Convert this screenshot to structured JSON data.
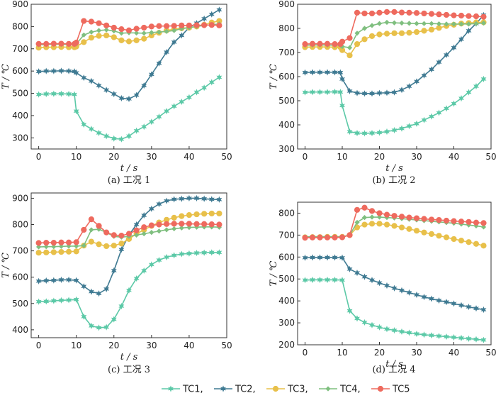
{
  "chart_data": [
    {
      "type": "line",
      "caption": "(a)  工况 1",
      "ylabel": "T / ℃",
      "xlabel": "t / s",
      "xlim": [
        -2,
        50
      ],
      "ylim": [
        250,
        900
      ],
      "xticks": [
        0,
        10,
        20,
        30,
        40,
        50
      ],
      "yticks": [
        300,
        400,
        500,
        600,
        700,
        800,
        900
      ],
      "x": [
        0,
        2,
        4,
        6,
        8,
        9.5,
        10,
        12,
        14,
        16,
        18,
        20,
        22,
        24,
        26,
        28,
        30,
        32,
        34,
        36,
        38,
        40,
        42,
        44,
        46,
        48
      ],
      "series": [
        {
          "name": "TC1",
          "values": [
            495,
            497,
            498,
            498,
            497,
            495,
            420,
            360,
            340,
            322,
            308,
            297,
            294,
            308,
            332,
            350,
            372,
            395,
            420,
            442,
            462,
            482,
            505,
            525,
            550,
            572
          ]
        },
        {
          "name": "TC2",
          "values": [
            598,
            600,
            600,
            601,
            600,
            598,
            592,
            570,
            555,
            535,
            515,
            497,
            478,
            475,
            492,
            535,
            585,
            635,
            685,
            730,
            760,
            795,
            815,
            835,
            855,
            875
          ]
        },
        {
          "name": "TC3",
          "values": [
            705,
            707,
            707,
            708,
            707,
            707,
            710,
            730,
            750,
            758,
            760,
            752,
            738,
            733,
            738,
            745,
            760,
            772,
            782,
            788,
            792,
            795,
            800,
            808,
            818,
            825
          ]
        },
        {
          "name": "TC4",
          "values": [
            718,
            719,
            720,
            720,
            719,
            720,
            722,
            762,
            775,
            782,
            785,
            780,
            770,
            772,
            771,
            770,
            773,
            775,
            778,
            782,
            790,
            795,
            800,
            805,
            808,
            812
          ]
        },
        {
          "name": "TC5",
          "values": [
            722,
            722,
            723,
            723,
            722,
            722,
            728,
            825,
            822,
            815,
            805,
            795,
            788,
            783,
            790,
            795,
            800,
            802,
            802,
            803,
            805,
            805,
            806,
            806,
            807,
            805
          ]
        }
      ]
    },
    {
      "type": "line",
      "caption": "(b)  工况 2",
      "ylabel": "T / ℃",
      "xlabel": "t / s",
      "xlim": [
        -2,
        50
      ],
      "ylim": [
        300,
        900
      ],
      "xticks": [
        0,
        10,
        20,
        30,
        40,
        50
      ],
      "yticks": [
        300,
        400,
        500,
        600,
        700,
        800,
        900
      ],
      "x": [
        0,
        2,
        4,
        6,
        8,
        9.5,
        10,
        12,
        14,
        16,
        18,
        20,
        22,
        24,
        26,
        28,
        30,
        32,
        34,
        36,
        38,
        40,
        42,
        44,
        46,
        48
      ],
      "series": [
        {
          "name": "TC1",
          "values": [
            535,
            536,
            536,
            536,
            537,
            536,
            480,
            372,
            366,
            365,
            366,
            368,
            372,
            378,
            385,
            395,
            405,
            420,
            435,
            450,
            468,
            488,
            510,
            535,
            560,
            590
          ]
        },
        {
          "name": "TC2",
          "values": [
            617,
            618,
            618,
            618,
            618,
            617,
            590,
            540,
            532,
            530,
            530,
            532,
            533,
            535,
            545,
            560,
            580,
            605,
            630,
            660,
            690,
            720,
            755,
            790,
            820,
            855
          ]
        },
        {
          "name": "TC3",
          "values": [
            722,
            723,
            723,
            723,
            722,
            722,
            710,
            688,
            735,
            755,
            768,
            775,
            778,
            780,
            780,
            782,
            785,
            790,
            795,
            802,
            810,
            815,
            820,
            822,
            825,
            825
          ]
        },
        {
          "name": "TC4",
          "values": [
            730,
            731,
            731,
            731,
            730,
            730,
            725,
            720,
            780,
            800,
            812,
            820,
            825,
            823,
            822,
            821,
            820,
            820,
            820,
            819,
            818,
            818,
            818,
            818,
            820,
            822
          ]
        },
        {
          "name": "TC5",
          "values": [
            735,
            736,
            736,
            736,
            735,
            735,
            745,
            760,
            865,
            862,
            862,
            865,
            868,
            868,
            866,
            865,
            864,
            862,
            860,
            858,
            856,
            854,
            853,
            851,
            850,
            848
          ]
        }
      ]
    },
    {
      "type": "line",
      "caption": "(c)  工况 3",
      "ylabel": "T / ℃",
      "xlabel": "t / s",
      "xlim": [
        -2,
        50
      ],
      "ylim": [
        370,
        920
      ],
      "xticks": [
        0,
        10,
        20,
        30,
        40,
        50
      ],
      "yticks": [
        400,
        500,
        600,
        700,
        800,
        900
      ],
      "x": [
        0,
        2,
        4,
        6,
        8,
        10,
        12,
        14,
        16,
        18,
        20,
        22,
        24,
        26,
        28,
        30,
        32,
        34,
        36,
        38,
        40,
        42,
        44,
        46,
        48
      ],
      "series": [
        {
          "name": "TC1",
          "values": [
            507,
            508,
            510,
            512,
            513,
            515,
            450,
            415,
            408,
            410,
            440,
            490,
            550,
            595,
            625,
            648,
            665,
            676,
            683,
            688,
            690,
            692,
            693,
            694,
            694
          ]
        },
        {
          "name": "TC2",
          "values": [
            585,
            587,
            588,
            590,
            590,
            588,
            565,
            545,
            538,
            555,
            625,
            705,
            760,
            800,
            835,
            860,
            878,
            890,
            896,
            898,
            900,
            900,
            898,
            896,
            895
          ]
        },
        {
          "name": "TC3",
          "values": [
            693,
            694,
            695,
            696,
            697,
            698,
            720,
            735,
            725,
            718,
            720,
            728,
            745,
            765,
            780,
            795,
            808,
            818,
            826,
            832,
            836,
            839,
            841,
            842,
            842
          ]
        },
        {
          "name": "TC4",
          "values": [
            715,
            716,
            716,
            717,
            718,
            718,
            720,
            780,
            782,
            770,
            755,
            752,
            755,
            760,
            765,
            770,
            775,
            780,
            784,
            787,
            789,
            790,
            791,
            791,
            790
          ]
        },
        {
          "name": "TC5",
          "values": [
            730,
            731,
            731,
            732,
            732,
            733,
            780,
            820,
            795,
            770,
            760,
            758,
            765,
            778,
            790,
            797,
            800,
            802,
            803,
            803,
            803,
            802,
            802,
            801,
            800
          ]
        }
      ]
    },
    {
      "type": "line",
      "caption": "(d)  工况 4",
      "ylabel": "T / ℃",
      "xlabel": "t / s",
      "xlim": [
        -2,
        50
      ],
      "ylim": [
        200,
        850
      ],
      "xticks": [
        0,
        10,
        20,
        30,
        40,
        50
      ],
      "yticks": [
        200,
        300,
        400,
        500,
        600,
        700,
        800
      ],
      "x": [
        0,
        2,
        4,
        6,
        8,
        10,
        12,
        14,
        16,
        18,
        20,
        22,
        24,
        26,
        28,
        30,
        32,
        34,
        36,
        38,
        40,
        42,
        44,
        46,
        48
      ],
      "series": [
        {
          "name": "TC1",
          "values": [
            495,
            496,
            496,
            496,
            496,
            495,
            355,
            320,
            302,
            290,
            280,
            272,
            266,
            260,
            255,
            250,
            246,
            243,
            240,
            237,
            234,
            231,
            228,
            225,
            222
          ]
        },
        {
          "name": "TC2",
          "values": [
            597,
            598,
            598,
            598,
            598,
            597,
            545,
            528,
            510,
            495,
            482,
            470,
            458,
            448,
            438,
            428,
            418,
            410,
            402,
            395,
            388,
            380,
            373,
            366,
            360
          ]
        },
        {
          "name": "TC3",
          "values": [
            690,
            691,
            691,
            692,
            692,
            692,
            700,
            735,
            748,
            752,
            752,
            748,
            742,
            735,
            728,
            720,
            712,
            705,
            697,
            690,
            682,
            675,
            668,
            660,
            652
          ]
        },
        {
          "name": "TC4",
          "values": [
            692,
            693,
            693,
            693,
            693,
            693,
            700,
            758,
            780,
            782,
            782,
            780,
            778,
            775,
            772,
            769,
            766,
            763,
            760,
            757,
            754,
            750,
            746,
            742,
            737
          ]
        },
        {
          "name": "TC5",
          "values": [
            688,
            689,
            689,
            689,
            689,
            690,
            700,
            815,
            825,
            810,
            800,
            793,
            788,
            784,
            780,
            777,
            774,
            771,
            769,
            766,
            764,
            762,
            760,
            757,
            755
          ]
        }
      ]
    }
  ],
  "legend": {
    "items": [
      {
        "label": "TC1,",
        "color": "#5cc9a7"
      },
      {
        "label": "TC2,",
        "color": "#3f7a92"
      },
      {
        "label": "TC3,",
        "color": "#e8c04a"
      },
      {
        "label": "TC4,",
        "color": "#7fbf7f"
      },
      {
        "label": "TC5",
        "color": "#ee6a5e"
      }
    ]
  },
  "series_colors": {
    "TC1": "#5cc9a7",
    "TC2": "#3f7a92",
    "TC3": "#e8c04a",
    "TC4": "#7fbf7f",
    "TC5": "#ee6a5e"
  }
}
